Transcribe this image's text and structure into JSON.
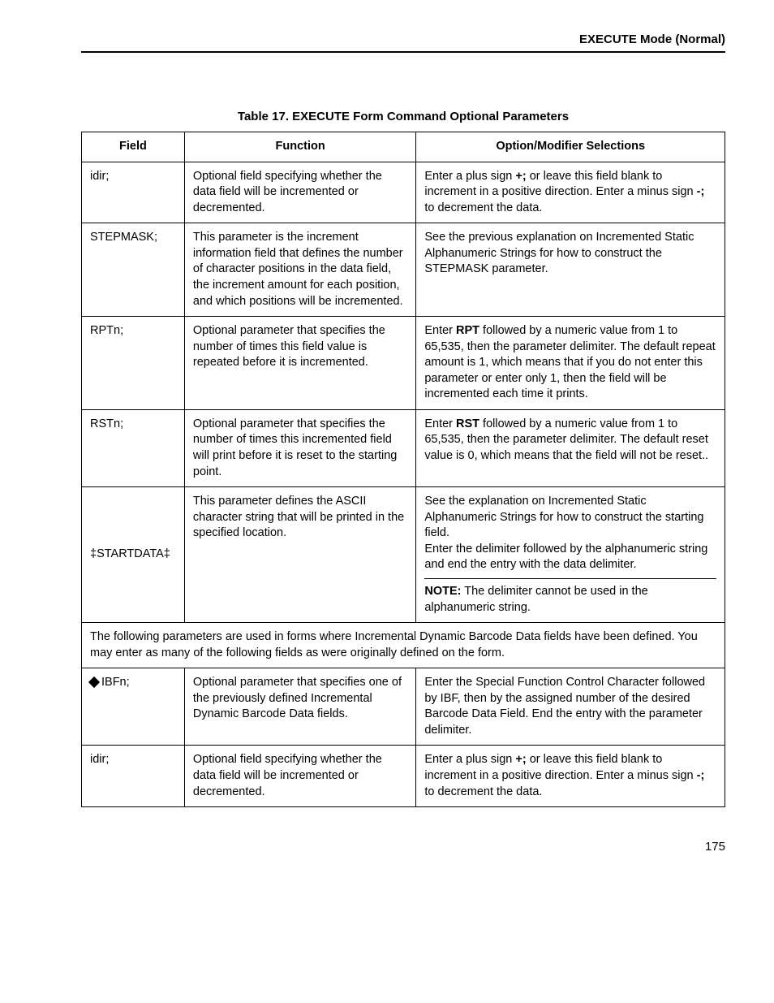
{
  "header": {
    "title": "EXECUTE Mode (Normal)"
  },
  "caption": "Table 17. EXECUTE Form Command Optional Parameters",
  "columns": {
    "field": "Field",
    "func": "Function",
    "opt": "Option/Modifier Selections"
  },
  "rows": {
    "r1": {
      "field": "idir;",
      "func": "Optional field specifying whether the data field will be incremented or decremented.",
      "opt_a": "Enter a plus sign ",
      "opt_b": "+;",
      "opt_c": " or leave this field blank to increment in a positive direction. Enter a minus sign ",
      "opt_d": "-;",
      "opt_e": " to decrement the data."
    },
    "r2": {
      "field": "STEPMASK;",
      "func": "This parameter is the increment information field that defines the number of character positions in the data field, the increment amount for each position, and which positions will be incremented.",
      "opt": "See the previous explanation on Incremented Static Alphanumeric Strings for how to construct the STEPMASK parameter."
    },
    "r3": {
      "field": "RPTn;",
      "func": "Optional parameter that specifies the number of times this field value is repeated before it is incremented.",
      "opt_a": "Enter ",
      "opt_b": "RPT",
      "opt_c": " followed by a numeric value from 1 to 65,535, then the parameter delimiter. The default repeat amount is 1, which means that if you do not enter this parameter or enter only 1, then the field will be incremented each time it prints."
    },
    "r4": {
      "field": "RSTn;",
      "func": "Optional parameter that specifies the number of times this incremented field will print before it is reset to the starting point.",
      "opt_a": "Enter ",
      "opt_b": "RST",
      "opt_c": " followed by a numeric value from 1 to 65,535, then the parameter delimiter. The default reset value is 0, which means that the field will not be reset.."
    },
    "r5": {
      "field": "‡STARTDATA‡",
      "func": "This parameter defines the ASCII character string that will be printed in the specified location.",
      "opt": "See the explanation on Incremented Static Alphanumeric Strings for how to construct the starting field.\nEnter the delimiter followed by the alphanumeric string and end the entry with the data delimiter.",
      "note_label": "NOTE:",
      "note_text": "  The delimiter cannot be used in the alphanumeric string."
    },
    "span": "The following parameters are used in forms where Incremental Dynamic Barcode Data fields have been defined. You may enter as many of the following fields as were originally defined on the form.",
    "r6": {
      "field": "IBFn;",
      "func": "Optional parameter that specifies one of the previously defined Incremental Dynamic Barcode Data fields.",
      "opt": "Enter the Special Function Control Character followed by IBF, then by the assigned number of the desired Barcode Data Field. End the entry with the parameter delimiter."
    },
    "r7": {
      "field": "idir;",
      "func": "Optional field specifying whether the data field will be incremented or decremented.",
      "opt_a": "Enter a plus sign ",
      "opt_b": "+;",
      "opt_c": " or leave this field blank to increment in a positive direction. Enter a minus sign ",
      "opt_d": "-;",
      "opt_e": " to decrement the data."
    }
  },
  "page": "175"
}
